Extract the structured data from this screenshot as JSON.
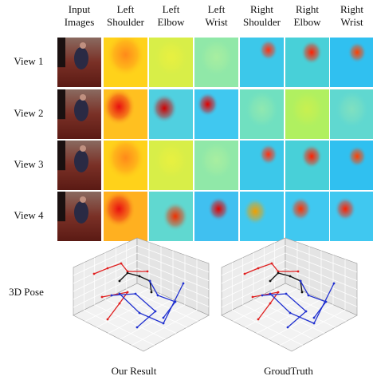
{
  "columns": [
    [
      "Input",
      "Images"
    ],
    [
      "Left",
      "Shoulder"
    ],
    [
      "Left",
      "Elbow"
    ],
    [
      "Left",
      "Wrist"
    ],
    [
      "Right",
      "Shoulder"
    ],
    [
      "Right",
      "Elbow"
    ],
    [
      "Right",
      "Wrist"
    ]
  ],
  "rows": [
    "View 1",
    "View 2",
    "View 3",
    "View 4"
  ],
  "pose_label": "3D Pose",
  "captions": [
    "Our Result",
    "GroudTruth"
  ]
}
